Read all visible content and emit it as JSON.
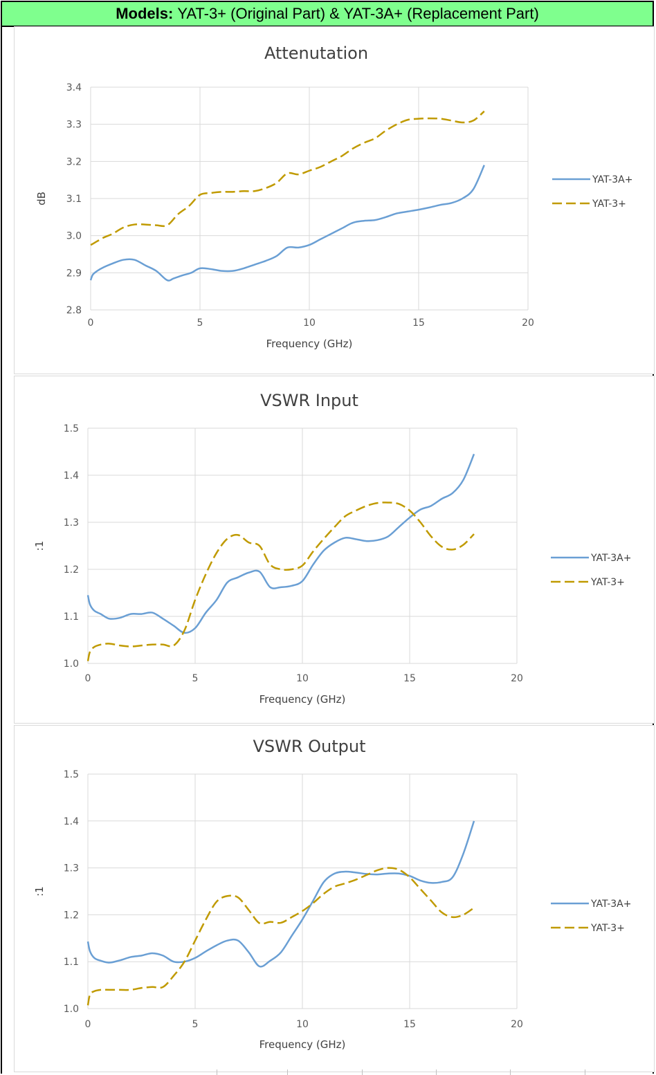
{
  "header": {
    "models_label": "Models:",
    "models_text": "YAT-3+ (Original Part) & YAT-3A+ (Replacement Part)"
  },
  "colors": {
    "header_bg": "#7fff8e",
    "YAT-3A+": "#6a9fd4",
    "YAT-3+": "#c09a00"
  },
  "chart_data": [
    {
      "type": "line",
      "title": "Attenutation",
      "xlabel": "Frequency (GHz)",
      "ylabel": "dB",
      "xlim": [
        0,
        20
      ],
      "ylim": [
        2.8,
        3.4
      ],
      "xticks": [
        0,
        5,
        10,
        15,
        20
      ],
      "yticks": [
        2.8,
        2.9,
        3.0,
        3.1,
        3.2,
        3.3,
        3.4
      ],
      "ytick_decimals": 1,
      "grid": true,
      "legend_position": "right",
      "series": [
        {
          "name": "YAT-3A+",
          "style": "solid",
          "x": [
            0,
            0.1,
            0.3,
            0.6,
            1.0,
            1.5,
            2.0,
            2.5,
            3.0,
            3.5,
            3.8,
            4.2,
            4.6,
            5.0,
            5.5,
            6.0,
            6.5,
            7.0,
            7.5,
            8.0,
            8.5,
            9.0,
            9.5,
            10.0,
            10.5,
            11.0,
            11.5,
            12.0,
            12.5,
            13.0,
            13.5,
            14.0,
            14.5,
            15.0,
            15.5,
            16.0,
            16.5,
            17.0,
            17.5,
            18.0
          ],
          "y": [
            2.88,
            2.895,
            2.905,
            2.915,
            2.925,
            2.935,
            2.935,
            2.92,
            2.905,
            2.88,
            2.885,
            2.893,
            2.9,
            2.912,
            2.91,
            2.905,
            2.905,
            2.912,
            2.922,
            2.932,
            2.945,
            2.968,
            2.968,
            2.975,
            2.99,
            3.005,
            3.02,
            3.035,
            3.04,
            3.042,
            3.05,
            3.06,
            3.065,
            3.07,
            3.076,
            3.083,
            3.088,
            3.1,
            3.125,
            3.19
          ]
        },
        {
          "name": "YAT-3+",
          "style": "dashed",
          "x": [
            0,
            0.1,
            0.3,
            0.6,
            1.0,
            1.5,
            2.0,
            2.5,
            3.0,
            3.5,
            4.0,
            4.5,
            5.0,
            5.5,
            6.0,
            6.5,
            7.0,
            7.5,
            8.0,
            8.5,
            9.0,
            9.5,
            10.0,
            10.5,
            11.0,
            11.5,
            12.0,
            12.5,
            13.0,
            13.5,
            14.0,
            14.5,
            15.0,
            15.5,
            16.0,
            16.5,
            17.0,
            17.5,
            18.0
          ],
          "y": [
            2.975,
            2.978,
            2.985,
            2.995,
            3.005,
            3.022,
            3.03,
            3.03,
            3.028,
            3.028,
            3.058,
            3.08,
            3.11,
            3.115,
            3.118,
            3.118,
            3.12,
            3.12,
            3.128,
            3.142,
            3.168,
            3.165,
            3.175,
            3.185,
            3.2,
            3.215,
            3.235,
            3.25,
            3.262,
            3.283,
            3.3,
            3.312,
            3.315,
            3.316,
            3.315,
            3.31,
            3.305,
            3.31,
            3.335
          ]
        }
      ]
    },
    {
      "type": "line",
      "title": "VSWR Input",
      "xlabel": "Frequency (GHz)",
      "ylabel": ":1",
      "xlim": [
        0,
        20
      ],
      "ylim": [
        1.0,
        1.5
      ],
      "xticks": [
        0,
        5,
        10,
        15,
        20
      ],
      "yticks": [
        1.0,
        1.1,
        1.2,
        1.3,
        1.4,
        1.5
      ],
      "ytick_decimals": 1,
      "grid": true,
      "legend_position": "right",
      "series": [
        {
          "name": "YAT-3A+",
          "style": "solid",
          "x": [
            0,
            0.1,
            0.3,
            0.6,
            1.0,
            1.5,
            2.0,
            2.5,
            3.0,
            3.5,
            4.0,
            4.5,
            5.0,
            5.5,
            6.0,
            6.5,
            7.0,
            7.5,
            8.0,
            8.5,
            9.0,
            9.5,
            10.0,
            10.5,
            11.0,
            11.5,
            12.0,
            12.5,
            13.0,
            13.5,
            14.0,
            14.5,
            15.0,
            15.5,
            16.0,
            16.5,
            17.0,
            17.5,
            18.0
          ],
          "y": [
            1.145,
            1.125,
            1.112,
            1.105,
            1.095,
            1.097,
            1.105,
            1.105,
            1.108,
            1.095,
            1.08,
            1.065,
            1.075,
            1.108,
            1.135,
            1.172,
            1.183,
            1.193,
            1.195,
            1.162,
            1.162,
            1.165,
            1.175,
            1.21,
            1.24,
            1.257,
            1.267,
            1.264,
            1.26,
            1.262,
            1.27,
            1.29,
            1.31,
            1.327,
            1.335,
            1.35,
            1.362,
            1.39,
            1.445
          ]
        },
        {
          "name": "YAT-3+",
          "style": "dashed",
          "x": [
            0,
            0.1,
            0.3,
            0.6,
            1.0,
            1.5,
            2.0,
            2.5,
            3.0,
            3.5,
            4.0,
            4.5,
            5.0,
            5.5,
            6.0,
            6.5,
            7.0,
            7.5,
            8.0,
            8.5,
            9.0,
            9.5,
            10.0,
            10.5,
            11.0,
            11.5,
            12.0,
            12.5,
            13.0,
            13.5,
            14.0,
            14.5,
            15.0,
            15.5,
            16.0,
            16.5,
            17.0,
            17.5,
            18.0
          ],
          "y": [
            1.005,
            1.025,
            1.035,
            1.04,
            1.042,
            1.038,
            1.036,
            1.038,
            1.04,
            1.04,
            1.038,
            1.07,
            1.135,
            1.19,
            1.235,
            1.265,
            1.273,
            1.257,
            1.25,
            1.21,
            1.2,
            1.2,
            1.208,
            1.238,
            1.265,
            1.29,
            1.313,
            1.325,
            1.335,
            1.341,
            1.342,
            1.339,
            1.325,
            1.3,
            1.27,
            1.248,
            1.242,
            1.252,
            1.275
          ]
        }
      ]
    },
    {
      "type": "line",
      "title": "VSWR Output",
      "xlabel": "Frequency (GHz)",
      "ylabel": ":1",
      "xlim": [
        0,
        20
      ],
      "ylim": [
        1.0,
        1.5
      ],
      "xticks": [
        0,
        5,
        10,
        15,
        20
      ],
      "yticks": [
        1.0,
        1.1,
        1.2,
        1.3,
        1.4,
        1.5
      ],
      "ytick_decimals": 1,
      "grid": true,
      "legend_position": "right",
      "series": [
        {
          "name": "YAT-3A+",
          "style": "solid",
          "x": [
            0,
            0.1,
            0.3,
            0.6,
            1.0,
            1.5,
            2.0,
            2.5,
            3.0,
            3.5,
            4.0,
            4.5,
            5.0,
            5.5,
            6.0,
            6.5,
            7.0,
            7.5,
            8.0,
            8.5,
            9.0,
            9.5,
            10.0,
            10.5,
            11.0,
            11.5,
            12.0,
            12.5,
            13.0,
            13.5,
            14.0,
            14.5,
            15.0,
            15.5,
            16.0,
            16.5,
            17.0,
            17.5,
            18.0
          ],
          "y": [
            1.143,
            1.122,
            1.108,
            1.102,
            1.098,
            1.103,
            1.11,
            1.113,
            1.118,
            1.113,
            1.1,
            1.1,
            1.108,
            1.122,
            1.135,
            1.145,
            1.145,
            1.12,
            1.09,
            1.102,
            1.12,
            1.155,
            1.19,
            1.23,
            1.27,
            1.288,
            1.292,
            1.29,
            1.287,
            1.286,
            1.288,
            1.288,
            1.283,
            1.273,
            1.268,
            1.27,
            1.28,
            1.33,
            1.4
          ]
        },
        {
          "name": "YAT-3+",
          "style": "dashed",
          "x": [
            0,
            0.1,
            0.3,
            0.6,
            1.0,
            1.5,
            2.0,
            2.5,
            3.0,
            3.5,
            4.0,
            4.5,
            5.0,
            5.5,
            6.0,
            6.5,
            7.0,
            7.5,
            8.0,
            8.5,
            9.0,
            9.5,
            10.0,
            10.5,
            11.0,
            11.5,
            12.0,
            12.5,
            13.0,
            13.5,
            14.0,
            14.5,
            15.0,
            15.5,
            16.0,
            16.5,
            17.0,
            17.5,
            18.0
          ],
          "y": [
            1.007,
            1.03,
            1.037,
            1.04,
            1.04,
            1.04,
            1.04,
            1.044,
            1.046,
            1.046,
            1.07,
            1.1,
            1.145,
            1.19,
            1.228,
            1.24,
            1.237,
            1.21,
            1.182,
            1.185,
            1.183,
            1.195,
            1.208,
            1.225,
            1.245,
            1.26,
            1.267,
            1.275,
            1.285,
            1.295,
            1.3,
            1.296,
            1.28,
            1.255,
            1.23,
            1.205,
            1.195,
            1.2,
            1.215
          ]
        }
      ]
    }
  ]
}
